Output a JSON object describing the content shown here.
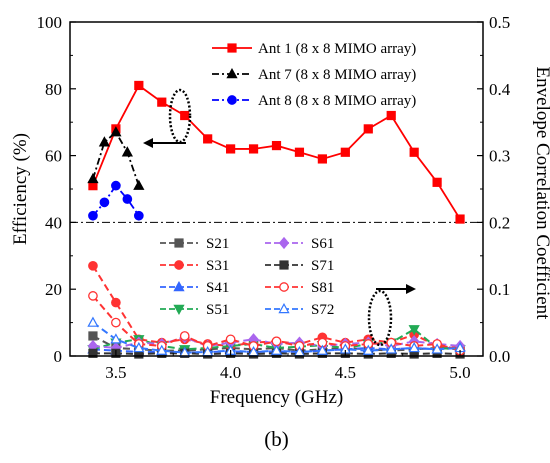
{
  "caption": "(b)",
  "chart_data": {
    "type": "line",
    "xlabel": "Frequency (GHz)",
    "xlim": [
      3.3,
      5.1
    ],
    "xticks": [
      "3.5",
      "4.0",
      "4.5",
      "5.0"
    ],
    "xtick_values": [
      3.5,
      4.0,
      4.5,
      5.0
    ],
    "y_left": {
      "label": "Efficiency (%)",
      "lim": [
        0,
        100
      ],
      "ticks": [
        "0",
        "20",
        "40",
        "60",
        "80",
        "100"
      ],
      "tick_values": [
        0,
        20,
        40,
        60,
        80,
        100
      ]
    },
    "y_right": {
      "label": "Envelope Correlation Coefficient",
      "lim": [
        0,
        0.5
      ],
      "ticks": [
        "0.0",
        "0.1",
        "0.2",
        "0.3",
        "0.4",
        "0.5"
      ],
      "tick_values": [
        0,
        0.1,
        0.2,
        0.3,
        0.4,
        0.5
      ]
    },
    "reference_line": {
      "axis": "left",
      "y": 40,
      "style": "dash-dot"
    },
    "efficiency_series": [
      {
        "name": "Ant 1 (8 x 8 MIMO array)",
        "color": "#ff0000",
        "marker": "square",
        "dash": "solid",
        "x": [
          3.4,
          3.5,
          3.6,
          3.7,
          3.8,
          3.9,
          4.0,
          4.1,
          4.2,
          4.3,
          4.4,
          4.5,
          4.6,
          4.7,
          4.8,
          4.9,
          5.0
        ],
        "y": [
          51,
          68,
          81,
          76,
          72,
          65,
          62,
          62,
          63,
          61,
          59,
          61,
          68,
          72,
          61,
          52,
          41
        ]
      },
      {
        "name": "Ant 7 (8 x 8 MIMO array)",
        "color": "#000000",
        "marker": "triangle",
        "dash": "dashdot",
        "x": [
          3.4,
          3.45,
          3.5,
          3.55,
          3.6
        ],
        "y": [
          53,
          64,
          67,
          61,
          51
        ]
      },
      {
        "name": "Ant 8 (8 x 8 MIMO array)",
        "color": "#0000ff",
        "marker": "circle",
        "dash": "dashdot",
        "x": [
          3.4,
          3.45,
          3.5,
          3.55,
          3.6
        ],
        "y": [
          42,
          46,
          51,
          47,
          42
        ]
      }
    ],
    "ecc_series": [
      {
        "name": "S21",
        "color": "#555555",
        "marker": "square",
        "fill": true,
        "x": [
          3.4,
          3.5,
          3.6,
          3.7,
          3.8,
          3.9,
          4.0,
          4.1,
          4.2,
          4.3,
          4.4,
          4.5,
          4.6,
          4.7,
          4.8,
          4.9,
          5.0
        ],
        "y": [
          0.03,
          0.012,
          0.01,
          0.008,
          0.008,
          0.01,
          0.012,
          0.01,
          0.012,
          0.008,
          0.01,
          0.012,
          0.01,
          0.008,
          0.01,
          0.012,
          0.01
        ]
      },
      {
        "name": "S31",
        "color": "#ff3333",
        "marker": "circle",
        "fill": true,
        "x": [
          3.4,
          3.5,
          3.6,
          3.7,
          3.8,
          3.9,
          4.0,
          4.1,
          4.2,
          4.3,
          4.4,
          4.5,
          4.6,
          4.7,
          4.8,
          4.9,
          5.0
        ],
        "y": [
          0.135,
          0.08,
          0.025,
          0.02,
          0.025,
          0.018,
          0.015,
          0.02,
          0.022,
          0.018,
          0.028,
          0.02,
          0.025,
          0.02,
          0.032,
          0.015,
          0.012
        ]
      },
      {
        "name": "S41",
        "color": "#3366ff",
        "marker": "triangle",
        "fill": true,
        "x": [
          3.4,
          3.5,
          3.6,
          3.7,
          3.8,
          3.9,
          4.0,
          4.1,
          4.2,
          4.3,
          4.4,
          4.5,
          4.6,
          4.7,
          4.8,
          4.9,
          5.0
        ],
        "y": [
          0.01,
          0.008,
          0.006,
          0.006,
          0.005,
          0.006,
          0.007,
          0.006,
          0.007,
          0.006,
          0.008,
          0.01,
          0.012,
          0.01,
          0.012,
          0.01,
          0.014
        ]
      },
      {
        "name": "S51",
        "color": "#22aa55",
        "marker": "triangle-down",
        "fill": true,
        "x": [
          3.4,
          3.5,
          3.6,
          3.7,
          3.8,
          3.9,
          4.0,
          4.1,
          4.2,
          4.3,
          4.4,
          4.5,
          4.6,
          4.7,
          4.8,
          4.9,
          5.0
        ],
        "y": [
          0.01,
          0.02,
          0.025,
          0.015,
          0.01,
          0.012,
          0.015,
          0.018,
          0.012,
          0.014,
          0.016,
          0.012,
          0.018,
          0.02,
          0.04,
          0.012,
          0.01
        ]
      },
      {
        "name": "S61",
        "color": "#aa66ee",
        "marker": "diamond",
        "fill": true,
        "x": [
          3.4,
          3.5,
          3.6,
          3.7,
          3.8,
          3.9,
          4.0,
          4.1,
          4.2,
          4.3,
          4.4,
          4.5,
          4.6,
          4.7,
          4.8,
          4.9,
          5.0
        ],
        "y": [
          0.015,
          0.012,
          0.02,
          0.018,
          0.028,
          0.015,
          0.02,
          0.025,
          0.018,
          0.02,
          0.015,
          0.018,
          0.02,
          0.015,
          0.022,
          0.018,
          0.015
        ]
      },
      {
        "name": "S71",
        "color": "#333333",
        "marker": "square",
        "fill": true,
        "x": [
          3.4,
          3.5,
          3.6,
          3.7,
          3.8,
          3.9,
          4.0,
          4.1,
          4.2,
          4.3,
          4.4,
          4.5,
          4.6,
          4.7,
          4.8,
          4.9,
          5.0
        ],
        "y": [
          0.004,
          0.004,
          0.003,
          0.004,
          0.004,
          0.003,
          0.004,
          0.003,
          0.004,
          0.003,
          0.004,
          0.004,
          0.003,
          0.004,
          0.003,
          0.004,
          0.003
        ]
      },
      {
        "name": "S81",
        "color": "#ff3333",
        "marker": "circle",
        "fill": false,
        "x": [
          3.4,
          3.5,
          3.6,
          3.7,
          3.8,
          3.9,
          4.0,
          4.1,
          4.2,
          4.3,
          4.4,
          4.5,
          4.6,
          4.7,
          4.8,
          4.9,
          5.0
        ],
        "y": [
          0.09,
          0.05,
          0.018,
          0.015,
          0.03,
          0.015,
          0.025,
          0.015,
          0.022,
          0.015,
          0.02,
          0.015,
          0.018,
          0.02,
          0.015,
          0.018,
          0.008
        ]
      },
      {
        "name": "S72",
        "color": "#3377ff",
        "marker": "triangle",
        "fill": false,
        "x": [
          3.4,
          3.5,
          3.6,
          3.7,
          3.8,
          3.9,
          4.0,
          4.1,
          4.2,
          4.3,
          4.4,
          4.5,
          4.6,
          4.7,
          4.8,
          4.9,
          5.0
        ],
        "y": [
          0.05,
          0.025,
          0.012,
          0.008,
          0.005,
          0.006,
          0.008,
          0.006,
          0.008,
          0.006,
          0.008,
          0.01,
          0.008,
          0.01,
          0.012,
          0.01,
          0.012
        ]
      }
    ]
  }
}
